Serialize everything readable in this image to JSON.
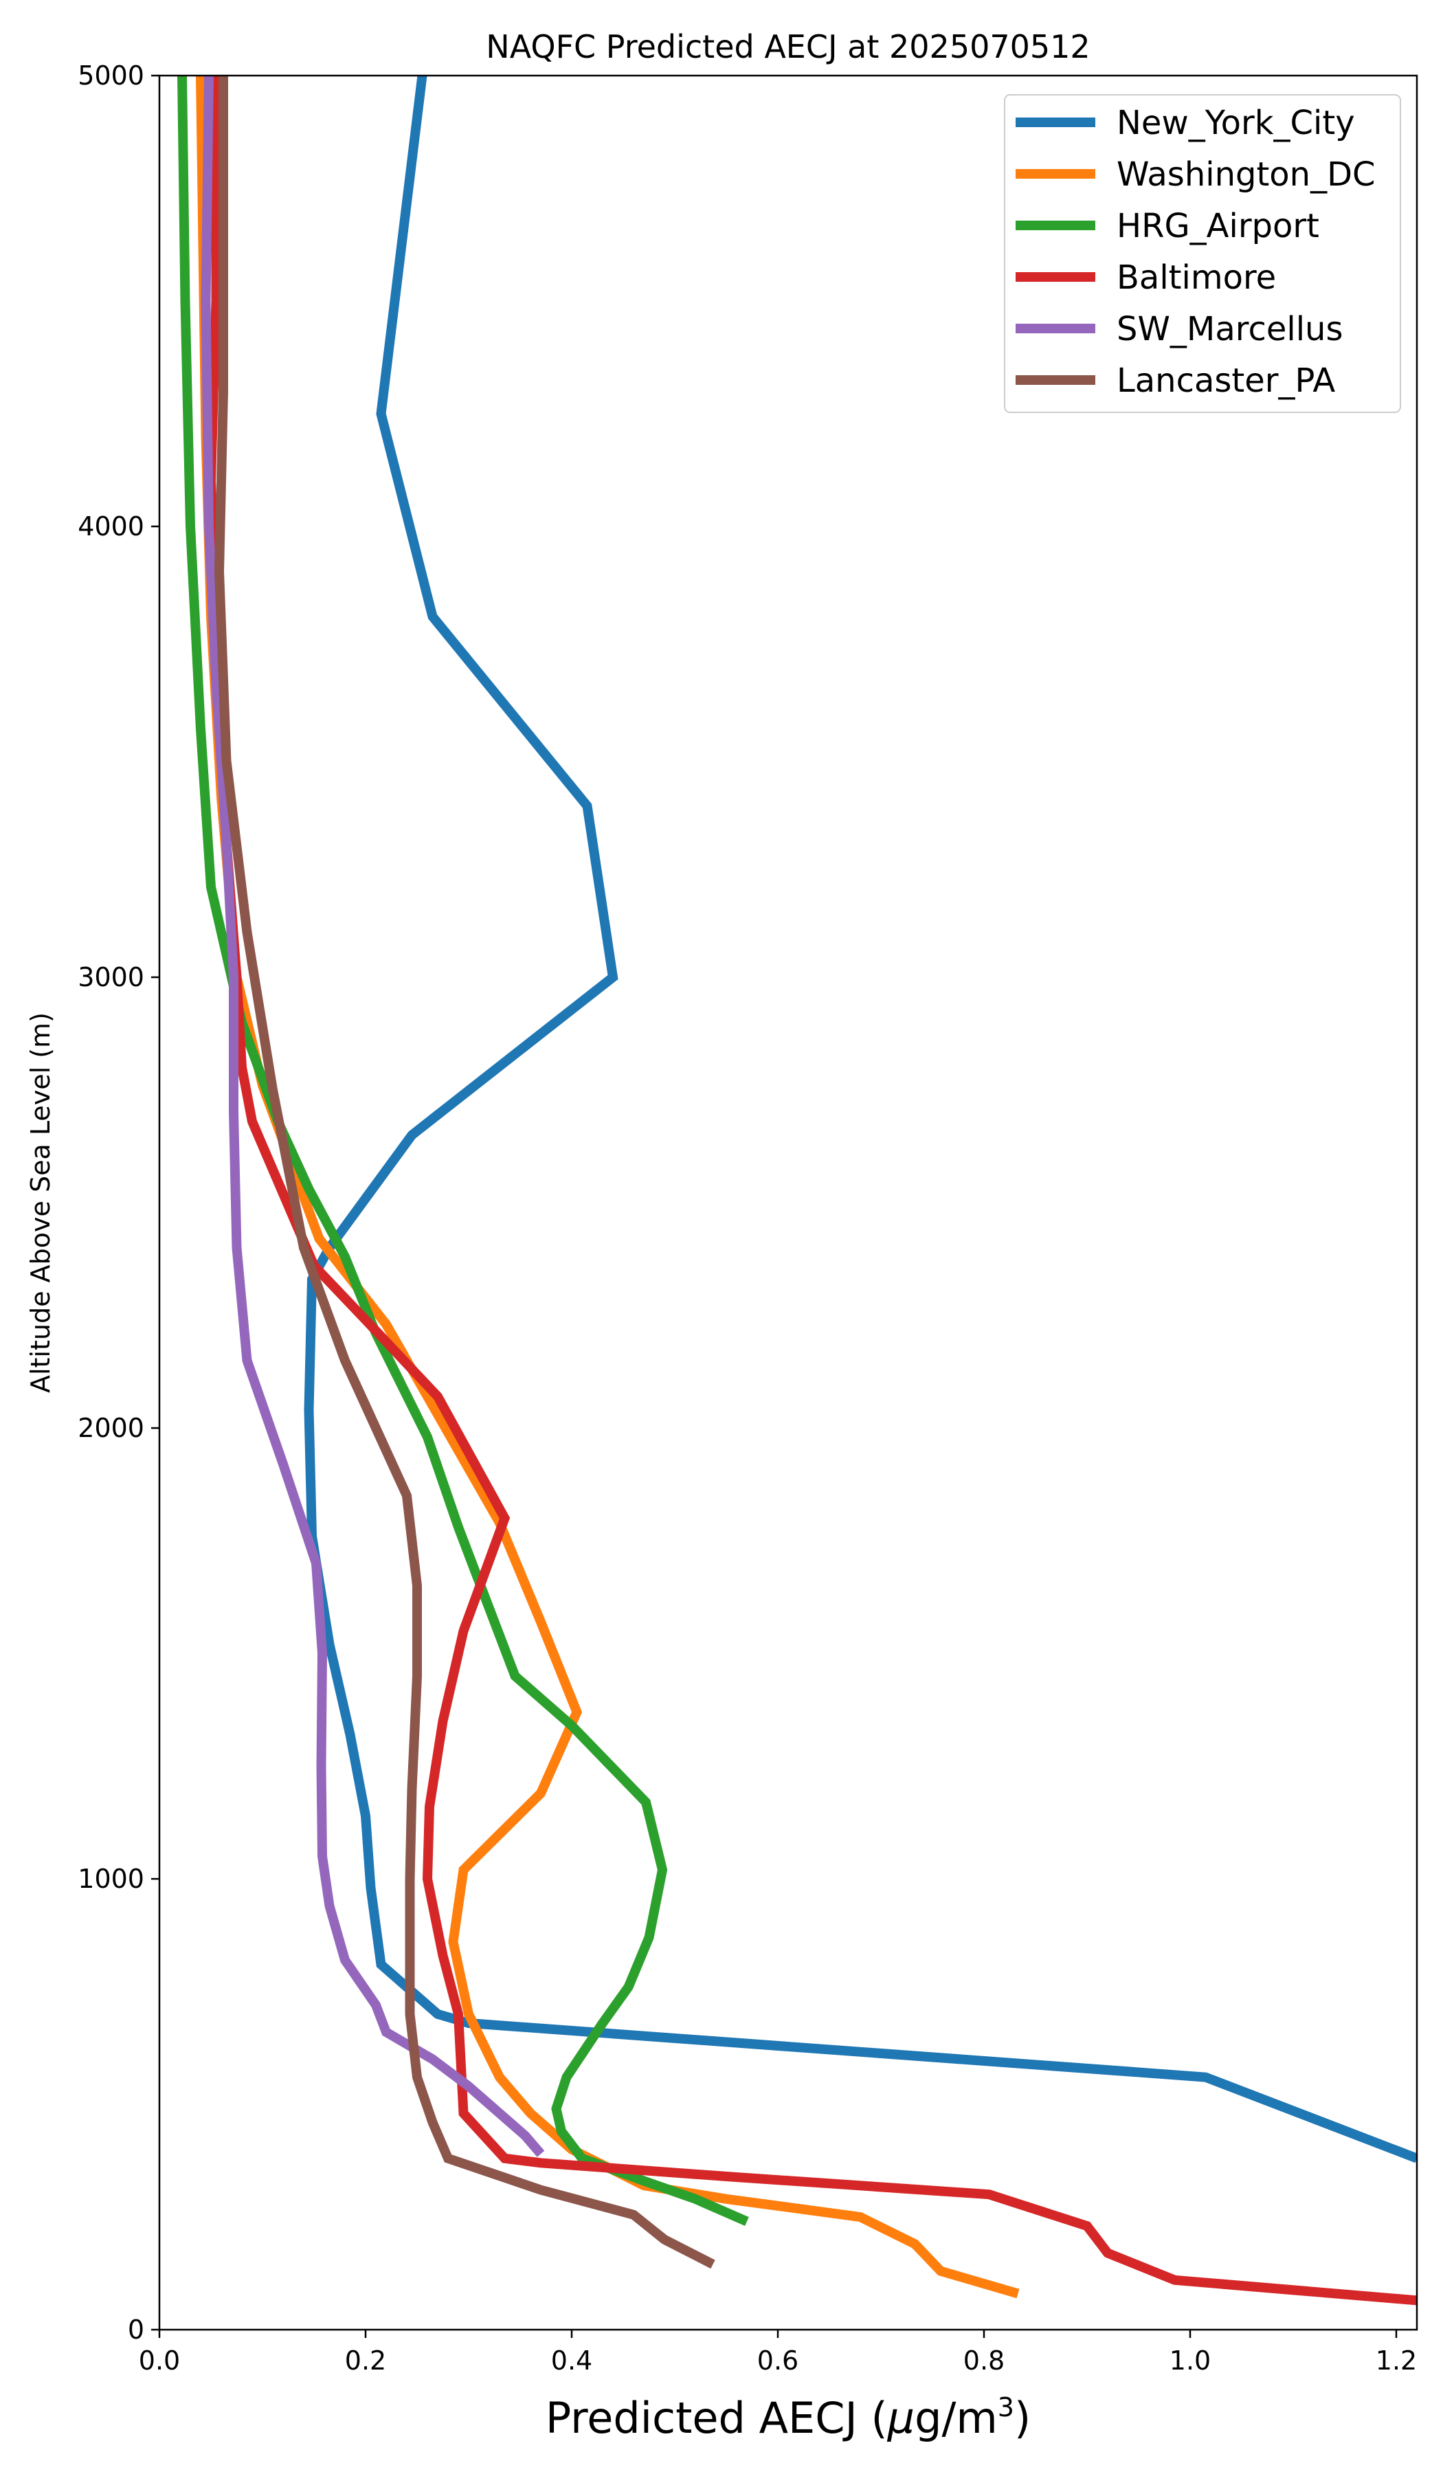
{
  "chart_data": {
    "type": "line",
    "title": "NAQFC Predicted AECJ at 2025070512",
    "xlabel_main": "Predicted AECJ (",
    "xlabel_mu": "μ",
    "xlabel_unit": "g/m",
    "xlabel_sup": "3",
    "xlabel_close": ")",
    "ylabel": "Altitude Above Sea Level (m)",
    "xlim": [
      0.0,
      1.22
    ],
    "ylim": [
      0,
      5000
    ],
    "x_ticks": [
      "0.0",
      "0.2",
      "0.4",
      "0.6",
      "0.8",
      "1.0",
      "1.2"
    ],
    "y_ticks": [
      "0",
      "1000",
      "2000",
      "3000",
      "4000",
      "5000"
    ],
    "grid": false,
    "legend_position": "top-right",
    "series": [
      {
        "name": "New_York_City",
        "color": "#1f77b4",
        "points": [
          [
            1.22,
            380
          ],
          [
            1.015,
            560
          ],
          [
            0.3,
            680
          ],
          [
            0.27,
            700
          ],
          [
            0.215,
            810
          ],
          [
            0.205,
            980
          ],
          [
            0.2,
            1140
          ],
          [
            0.185,
            1320
          ],
          [
            0.165,
            1520
          ],
          [
            0.148,
            1760
          ],
          [
            0.145,
            2040
          ],
          [
            0.148,
            2330
          ],
          [
            0.165,
            2400
          ],
          [
            0.245,
            2650
          ],
          [
            0.44,
            3000
          ],
          [
            0.415,
            3380
          ],
          [
            0.265,
            3800
          ],
          [
            0.215,
            4250
          ],
          [
            0.255,
            5000
          ]
        ]
      },
      {
        "name": "Washington_DC",
        "color": "#ff7f0e",
        "points": [
          [
            0.833,
            80
          ],
          [
            0.758,
            130
          ],
          [
            0.733,
            190
          ],
          [
            0.68,
            250
          ],
          [
            0.55,
            290
          ],
          [
            0.47,
            320
          ],
          [
            0.4,
            400
          ],
          [
            0.36,
            480
          ],
          [
            0.33,
            560
          ],
          [
            0.3,
            700
          ],
          [
            0.285,
            860
          ],
          [
            0.295,
            1020
          ],
          [
            0.37,
            1190
          ],
          [
            0.405,
            1370
          ],
          [
            0.37,
            1570
          ],
          [
            0.33,
            1790
          ],
          [
            0.27,
            2030
          ],
          [
            0.22,
            2230
          ],
          [
            0.155,
            2420
          ],
          [
            0.1,
            2760
          ],
          [
            0.075,
            3000
          ],
          [
            0.06,
            3400
          ],
          [
            0.05,
            3800
          ],
          [
            0.045,
            4200
          ],
          [
            0.04,
            5000
          ]
        ]
      },
      {
        "name": "HRG_Airport",
        "color": "#2ca02c",
        "points": [
          [
            0.57,
            240
          ],
          [
            0.52,
            290
          ],
          [
            0.47,
            330
          ],
          [
            0.41,
            380
          ],
          [
            0.39,
            440
          ],
          [
            0.385,
            490
          ],
          [
            0.395,
            560
          ],
          [
            0.43,
            680
          ],
          [
            0.455,
            760
          ],
          [
            0.475,
            870
          ],
          [
            0.488,
            1020
          ],
          [
            0.472,
            1170
          ],
          [
            0.4,
            1340
          ],
          [
            0.345,
            1450
          ],
          [
            0.33,
            1540
          ],
          [
            0.29,
            1780
          ],
          [
            0.26,
            1980
          ],
          [
            0.21,
            2210
          ],
          [
            0.18,
            2380
          ],
          [
            0.145,
            2530
          ],
          [
            0.115,
            2680
          ],
          [
            0.08,
            2900
          ],
          [
            0.065,
            3050
          ],
          [
            0.05,
            3200
          ],
          [
            0.04,
            3550
          ],
          [
            0.03,
            4000
          ],
          [
            0.025,
            4500
          ],
          [
            0.022,
            5000
          ]
        ]
      },
      {
        "name": "Baltimore",
        "color": "#d62728",
        "points": [
          [
            1.22,
            65
          ],
          [
            0.985,
            110
          ],
          [
            0.92,
            170
          ],
          [
            0.9,
            230
          ],
          [
            0.805,
            300
          ],
          [
            0.55,
            340
          ],
          [
            0.37,
            370
          ],
          [
            0.335,
            380
          ],
          [
            0.295,
            480
          ],
          [
            0.29,
            700
          ],
          [
            0.275,
            830
          ],
          [
            0.26,
            1000
          ],
          [
            0.262,
            1160
          ],
          [
            0.275,
            1350
          ],
          [
            0.295,
            1550
          ],
          [
            0.335,
            1800
          ],
          [
            0.27,
            2070
          ],
          [
            0.2,
            2240
          ],
          [
            0.15,
            2360
          ],
          [
            0.09,
            2680
          ],
          [
            0.08,
            2800
          ],
          [
            0.075,
            3000
          ],
          [
            0.065,
            3300
          ],
          [
            0.055,
            3700
          ],
          [
            0.05,
            4100
          ],
          [
            0.055,
            4500
          ],
          [
            0.055,
            5000
          ]
        ]
      },
      {
        "name": "SW_Marcellus",
        "color": "#9467bd",
        "points": [
          [
            0.37,
            390
          ],
          [
            0.355,
            430
          ],
          [
            0.3,
            540
          ],
          [
            0.265,
            600
          ],
          [
            0.22,
            660
          ],
          [
            0.21,
            720
          ],
          [
            0.18,
            820
          ],
          [
            0.165,
            940
          ],
          [
            0.158,
            1050
          ],
          [
            0.157,
            1250
          ],
          [
            0.158,
            1500
          ],
          [
            0.152,
            1700
          ],
          [
            0.12,
            1920
          ],
          [
            0.085,
            2150
          ],
          [
            0.075,
            2400
          ],
          [
            0.072,
            2700
          ],
          [
            0.072,
            3000
          ],
          [
            0.065,
            3300
          ],
          [
            0.055,
            3650
          ],
          [
            0.048,
            4000
          ],
          [
            0.045,
            4500
          ],
          [
            0.048,
            5000
          ]
        ]
      },
      {
        "name": "Lancaster_PA",
        "color": "#8c564b",
        "points": [
          [
            0.537,
            145
          ],
          [
            0.49,
            200
          ],
          [
            0.46,
            255
          ],
          [
            0.37,
            310
          ],
          [
            0.28,
            380
          ],
          [
            0.265,
            460
          ],
          [
            0.25,
            560
          ],
          [
            0.243,
            700
          ],
          [
            0.243,
            1000
          ],
          [
            0.245,
            1200
          ],
          [
            0.25,
            1450
          ],
          [
            0.25,
            1650
          ],
          [
            0.24,
            1850
          ],
          [
            0.18,
            2150
          ],
          [
            0.14,
            2400
          ],
          [
            0.11,
            2750
          ],
          [
            0.085,
            3100
          ],
          [
            0.065,
            3480
          ],
          [
            0.058,
            3900
          ],
          [
            0.062,
            4300
          ],
          [
            0.062,
            5000
          ]
        ]
      }
    ]
  }
}
